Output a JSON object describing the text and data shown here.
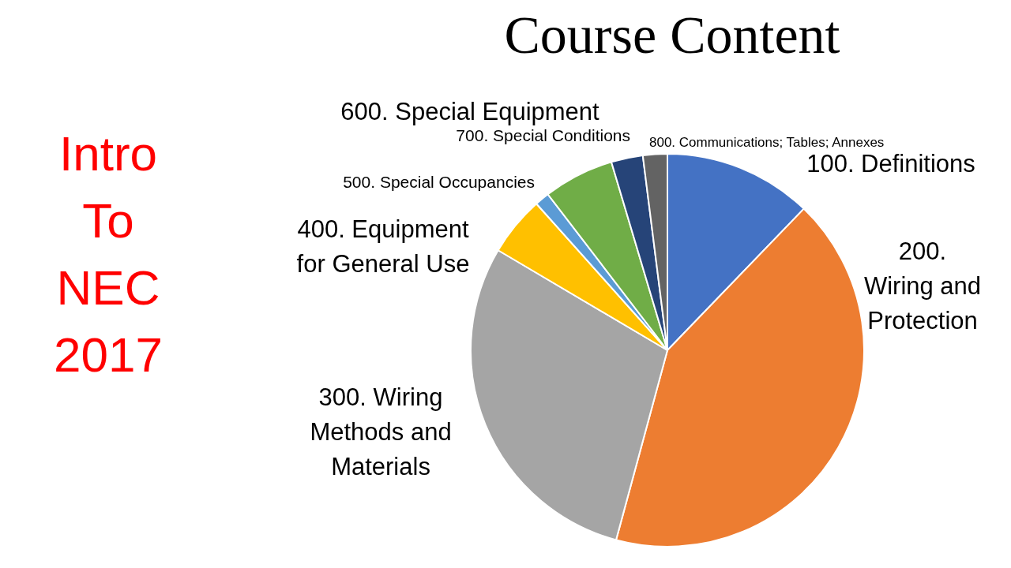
{
  "chart_data": {
    "type": "pie",
    "title": "Course Content",
    "categories": [
      "100. Definitions",
      "200. Wiring and Protection",
      "300. Wiring Methods and Materials",
      "400. Equipment for General Use",
      "500. Special Occupancies",
      "600. Special Equipment",
      "700. Special Conditions",
      "800. Communications; Tables; Annexes"
    ],
    "values": [
      12.2,
      42.0,
      29.3,
      4.9,
      1.2,
      5.8,
      2.6,
      2.0
    ],
    "colors": [
      "#4472c4",
      "#ed7d31",
      "#a5a5a5",
      "#ffc000",
      "#5b9bd5",
      "#70ad47",
      "#264478",
      "#636363"
    ],
    "annotations": [
      "Intro To NEC 2017"
    ]
  }
}
